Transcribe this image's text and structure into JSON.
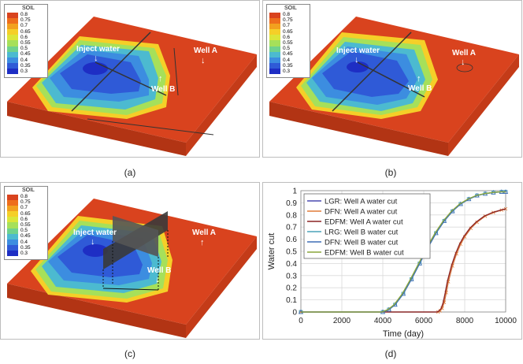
{
  "colorbar": {
    "title": "SOIL",
    "levels": [
      "0.8",
      "0.75",
      "0.7",
      "0.65",
      "0.6",
      "0.55",
      "0.5",
      "0.45",
      "0.4",
      "0.35",
      "0.3"
    ],
    "colors": [
      "#d9431e",
      "#ee6e1c",
      "#f2a11f",
      "#f5cf28",
      "#dbe639",
      "#a6e05a",
      "#6fd28d",
      "#4cbad0",
      "#3c8de0",
      "#2f5ad7",
      "#1e2ec4"
    ]
  },
  "panels": [
    {
      "id": "a",
      "label": "(a)",
      "inject": "Inject water",
      "well_a": "Well A",
      "well_b": "Well B"
    },
    {
      "id": "b",
      "label": "(b)",
      "inject": "Inject water",
      "well_a": "Well A",
      "well_b": "Well B"
    },
    {
      "id": "c",
      "label": "(c)",
      "inject": "Inject water",
      "well_a": "Well A",
      "well_b": "Well B"
    }
  ],
  "panel_d_label": "(d)",
  "chart_data": {
    "type": "line",
    "xlabel": "Time (day)",
    "ylabel": "Water cut",
    "xlim": [
      0,
      10000
    ],
    "ylim": [
      0,
      1
    ],
    "xticks": [
      0,
      2000,
      4000,
      6000,
      8000,
      10000
    ],
    "yticks": [
      0,
      0.1,
      0.2,
      0.3,
      0.4,
      0.5,
      0.6,
      0.7,
      0.8,
      0.9,
      1
    ],
    "grid": true,
    "legend_position": "top-left",
    "series": [
      {
        "name": "LGR: Well A water cut",
        "color": "#4a4ab0",
        "marker": "none",
        "x": [
          0,
          6700,
          6800,
          6900,
          7000,
          7100,
          7200,
          7400,
          7600,
          7800,
          8000,
          8300,
          8600,
          9000,
          9400,
          9800,
          10000
        ],
        "y": [
          0,
          0,
          0.01,
          0.03,
          0.08,
          0.16,
          0.25,
          0.38,
          0.48,
          0.56,
          0.62,
          0.69,
          0.74,
          0.79,
          0.82,
          0.84,
          0.85
        ]
      },
      {
        "name": "DFN: Well A water cut",
        "color": "#e07b39",
        "marker": "x",
        "x": [
          0,
          6700,
          6800,
          6900,
          7000,
          7100,
          7200,
          7400,
          7600,
          7800,
          8000,
          8300,
          8600,
          9000,
          9400,
          9800,
          10000
        ],
        "y": [
          0,
          0,
          0.01,
          0.03,
          0.08,
          0.16,
          0.25,
          0.38,
          0.48,
          0.56,
          0.62,
          0.69,
          0.74,
          0.79,
          0.82,
          0.84,
          0.85
        ]
      },
      {
        "name": "EDFM: Well A water cut",
        "color": "#8b2323",
        "marker": "none",
        "x": [
          0,
          6650,
          6750,
          6850,
          6950,
          7050,
          7150,
          7350,
          7550,
          7750,
          7950,
          8250,
          8550,
          8950,
          9350,
          9750,
          10000
        ],
        "y": [
          0,
          0,
          0.01,
          0.03,
          0.08,
          0.16,
          0.25,
          0.38,
          0.48,
          0.56,
          0.62,
          0.69,
          0.74,
          0.79,
          0.82,
          0.84,
          0.85
        ]
      },
      {
        "name": "LRG: Well B water cut",
        "color": "#4aa3b8",
        "marker": "square",
        "x": [
          0,
          4000,
          4300,
          4600,
          5000,
          5400,
          5800,
          6200,
          6600,
          7000,
          7400,
          7800,
          8200,
          8600,
          9000,
          9400,
          9800,
          10000
        ],
        "y": [
          0,
          0,
          0.02,
          0.06,
          0.15,
          0.27,
          0.4,
          0.53,
          0.65,
          0.75,
          0.83,
          0.89,
          0.93,
          0.96,
          0.975,
          0.985,
          0.99,
          0.99
        ]
      },
      {
        "name": "DFN: Well B water cut",
        "color": "#3f6fb5",
        "marker": "triangle",
        "x": [
          0,
          4000,
          4300,
          4600,
          5000,
          5400,
          5800,
          6200,
          6600,
          7000,
          7400,
          7800,
          8200,
          8600,
          9000,
          9400,
          9800,
          10000
        ],
        "y": [
          0,
          0,
          0.02,
          0.06,
          0.15,
          0.27,
          0.4,
          0.53,
          0.65,
          0.75,
          0.83,
          0.89,
          0.93,
          0.96,
          0.975,
          0.985,
          0.99,
          0.99
        ]
      },
      {
        "name": "EDFM: Well B water cut",
        "color": "#8aa63a",
        "marker": "none",
        "x": [
          0,
          3950,
          4250,
          4550,
          4950,
          5350,
          5750,
          6150,
          6550,
          6950,
          7350,
          7750,
          8150,
          8550,
          8950,
          9350,
          9750,
          10000
        ],
        "y": [
          0,
          0,
          0.02,
          0.06,
          0.15,
          0.27,
          0.4,
          0.53,
          0.65,
          0.75,
          0.83,
          0.89,
          0.93,
          0.96,
          0.975,
          0.985,
          0.99,
          0.99
        ]
      }
    ]
  }
}
